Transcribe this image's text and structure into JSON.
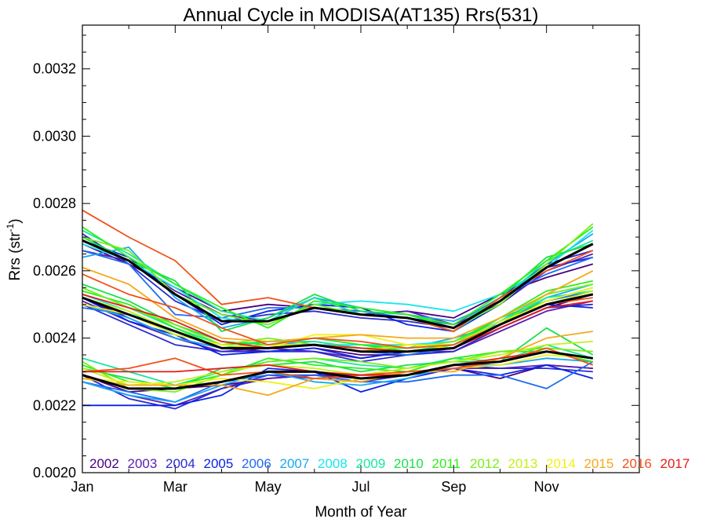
{
  "chart_data": {
    "type": "line",
    "title": "Annual Cycle in MODISA(AT135) Rrs(531)",
    "xlabel": "Month of Year",
    "ylabel_main": "Rrs (str",
    "ylabel_sup": "-1",
    "ylabel_end": ")",
    "xlim": [
      1,
      13
    ],
    "ylim": [
      0.002,
      0.00333
    ],
    "x_ticks": [
      {
        "x": 1,
        "label": "Jan"
      },
      {
        "x": 3,
        "label": "Mar"
      },
      {
        "x": 5,
        "label": "May"
      },
      {
        "x": 7,
        "label": "Jul"
      },
      {
        "x": 9,
        "label": "Sep"
      },
      {
        "x": 11,
        "label": "Nov"
      }
    ],
    "y_ticks": [
      {
        "y": 0.002,
        "label": "0.0020"
      },
      {
        "y": 0.0022,
        "label": "0.0022"
      },
      {
        "y": 0.0024,
        "label": "0.0024"
      },
      {
        "y": 0.0026,
        "label": "0.0026"
      },
      {
        "y": 0.0028,
        "label": "0.0028"
      },
      {
        "y": 0.003,
        "label": "0.0030"
      },
      {
        "y": 0.0032,
        "label": "0.0032"
      }
    ],
    "x": [
      1,
      2,
      3,
      4,
      5,
      6,
      7,
      8,
      9,
      10,
      11,
      12
    ],
    "legend_placement": "bottom",
    "legend": [
      {
        "year": "2002",
        "color": "#4b0082"
      },
      {
        "year": "2003",
        "color": "#5a1fb0"
      },
      {
        "year": "2004",
        "color": "#2b2bd0"
      },
      {
        "year": "2005",
        "color": "#0a22e6"
      },
      {
        "year": "2006",
        "color": "#1f6bf2"
      },
      {
        "year": "2007",
        "color": "#19a8f0"
      },
      {
        "year": "2008",
        "color": "#19e6ee"
      },
      {
        "year": "2009",
        "color": "#19e6a0"
      },
      {
        "year": "2010",
        "color": "#19e04c"
      },
      {
        "year": "2011",
        "color": "#2cf01a"
      },
      {
        "year": "2012",
        "color": "#78ee1a"
      },
      {
        "year": "2013",
        "color": "#c5f01a"
      },
      {
        "year": "2014",
        "color": "#f2f01a"
      },
      {
        "year": "2015",
        "color": "#f6a81a"
      },
      {
        "year": "2016",
        "color": "#f25019"
      },
      {
        "year": "2017",
        "color": "#e81a1a"
      }
    ],
    "series": [
      {
        "group": "high",
        "color": "#4b0082",
        "values": [
          0.00268,
          0.00262,
          0.00255,
          0.00248,
          0.0025,
          0.00249,
          0.00247,
          0.00248,
          0.00246,
          0.00253,
          0.00258,
          0.00262
        ]
      },
      {
        "group": "high",
        "color": "#5a1fb0",
        "values": [
          0.00266,
          0.00263,
          0.00254,
          0.00247,
          0.00245,
          0.00252,
          0.00247,
          0.00248,
          0.00244,
          0.0025,
          0.0026,
          0.00265
        ]
      },
      {
        "group": "high",
        "color": "#2b2bd0",
        "values": [
          0.00271,
          0.00262,
          0.00251,
          0.00245,
          0.00247,
          0.00248,
          0.00246,
          0.00245,
          0.00243,
          0.00252,
          0.00262,
          0.00266
        ]
      },
      {
        "group": "high",
        "color": "#0a22e6",
        "values": [
          0.00269,
          0.00264,
          0.00253,
          0.00244,
          0.00248,
          0.0025,
          0.00249,
          0.00244,
          0.00242,
          0.0025,
          0.00261,
          0.00264
        ]
      },
      {
        "group": "high",
        "color": "#1f6bf2",
        "values": [
          0.00266,
          0.00262,
          0.00247,
          0.00246,
          0.00249,
          0.00249,
          0.00248,
          0.00246,
          0.00244,
          0.00252,
          0.00259,
          0.00264
        ]
      },
      {
        "group": "high",
        "color": "#19a8f0",
        "values": [
          0.00264,
          0.00267,
          0.00252,
          0.00243,
          0.00246,
          0.00252,
          0.00249,
          0.00247,
          0.00245,
          0.00251,
          0.00262,
          0.00271
        ]
      },
      {
        "group": "high",
        "color": "#19e6ee",
        "values": [
          0.00268,
          0.00263,
          0.00255,
          0.00246,
          0.00244,
          0.0025,
          0.00251,
          0.0025,
          0.00248,
          0.00253,
          0.00261,
          0.00272
        ]
      },
      {
        "group": "high",
        "color": "#19e6a0",
        "values": [
          0.00272,
          0.00265,
          0.00256,
          0.00248,
          0.00245,
          0.00252,
          0.00247,
          0.00246,
          0.00242,
          0.00251,
          0.00263,
          0.00269
        ]
      },
      {
        "group": "high",
        "color": "#19e04c",
        "values": [
          0.0027,
          0.00263,
          0.00257,
          0.00242,
          0.00246,
          0.00253,
          0.00248,
          0.00247,
          0.00243,
          0.00252,
          0.00264,
          0.00268
        ]
      },
      {
        "group": "high",
        "color": "#2cf01a",
        "values": [
          0.00273,
          0.00264,
          0.00256,
          0.00249,
          0.00243,
          0.00251,
          0.00249,
          0.00247,
          0.00244,
          0.00253,
          0.00263,
          0.00273
        ]
      },
      {
        "group": "high",
        "color": "#78ee1a",
        "values": [
          0.0027,
          0.00266,
          0.00253,
          0.00247,
          0.00244,
          0.0025,
          0.00247,
          0.00246,
          0.00243,
          0.0025,
          0.00262,
          0.00274
        ]
      },
      {
        "group": "high",
        "color": "#f25019",
        "values": [
          0.00278,
          0.0027,
          0.00263,
          0.0025,
          0.00252,
          0.00249,
          0.00247,
          0.00246,
          0.00242,
          0.00252,
          0.0026,
          0.00266
        ]
      },
      {
        "group": "high",
        "color": "#000000",
        "width": 3,
        "values": [
          0.00269,
          0.00263,
          0.00253,
          0.00245,
          0.00245,
          0.00249,
          0.00247,
          0.00246,
          0.00243,
          0.00251,
          0.00261,
          0.00268
        ]
      },
      {
        "group": "mid",
        "color": "#4b0082",
        "values": [
          0.00252,
          0.00246,
          0.0024,
          0.00237,
          0.00236,
          0.00237,
          0.00235,
          0.00235,
          0.00237,
          0.00243,
          0.00249,
          0.00253
        ]
      },
      {
        "group": "mid",
        "color": "#5a1fb0",
        "values": [
          0.00251,
          0.00245,
          0.0024,
          0.00236,
          0.00237,
          0.00236,
          0.00234,
          0.00236,
          0.00236,
          0.00242,
          0.00248,
          0.00251
        ]
      },
      {
        "group": "mid",
        "color": "#2b2bd0",
        "values": [
          0.0025,
          0.00244,
          0.00238,
          0.00236,
          0.00236,
          0.00236,
          0.00233,
          0.00235,
          0.00236,
          0.00243,
          0.00249,
          0.0025
        ]
      },
      {
        "group": "mid",
        "color": "#0a22e6",
        "values": [
          0.00252,
          0.00245,
          0.00241,
          0.00235,
          0.00236,
          0.00237,
          0.00234,
          0.00236,
          0.00238,
          0.00244,
          0.0025,
          0.00249
        ]
      },
      {
        "group": "mid",
        "color": "#1f6bf2",
        "values": [
          0.00249,
          0.00247,
          0.00242,
          0.00237,
          0.00238,
          0.00238,
          0.00236,
          0.00235,
          0.00237,
          0.00245,
          0.00251,
          0.00254
        ]
      },
      {
        "group": "mid",
        "color": "#19a8f0",
        "values": [
          0.0025,
          0.00246,
          0.0024,
          0.00237,
          0.00238,
          0.00239,
          0.00237,
          0.00237,
          0.0024,
          0.00244,
          0.00252,
          0.00256
        ]
      },
      {
        "group": "mid",
        "color": "#19e6ee",
        "values": [
          0.00253,
          0.00248,
          0.00241,
          0.00238,
          0.00237,
          0.00238,
          0.00238,
          0.00238,
          0.00239,
          0.00245,
          0.00253,
          0.00256
        ]
      },
      {
        "group": "mid",
        "color": "#19e6a0",
        "values": [
          0.00255,
          0.00249,
          0.00243,
          0.00238,
          0.00239,
          0.00239,
          0.00237,
          0.00237,
          0.00238,
          0.00245,
          0.00252,
          0.00254
        ]
      },
      {
        "group": "mid",
        "color": "#19e04c",
        "values": [
          0.00256,
          0.00251,
          0.00244,
          0.00239,
          0.00238,
          0.0024,
          0.00238,
          0.00236,
          0.00238,
          0.00246,
          0.00251,
          0.00255
        ]
      },
      {
        "group": "mid",
        "color": "#2cf01a",
        "values": [
          0.00254,
          0.0025,
          0.00243,
          0.00237,
          0.00239,
          0.0024,
          0.00238,
          0.00237,
          0.00239,
          0.00246,
          0.00254,
          0.00257
        ]
      },
      {
        "group": "mid",
        "color": "#78ee1a",
        "values": [
          0.00255,
          0.00249,
          0.00244,
          0.00238,
          0.0024,
          0.00238,
          0.00237,
          0.00237,
          0.00239,
          0.00244,
          0.00253,
          0.00256
        ]
      },
      {
        "group": "mid",
        "color": "#c5f01a",
        "values": [
          0.00252,
          0.00248,
          0.00242,
          0.00237,
          0.00238,
          0.00238,
          0.00236,
          0.00238,
          0.00238,
          0.00245,
          0.0025,
          0.00254
        ]
      },
      {
        "group": "mid",
        "color": "#f2f01a",
        "values": [
          0.0025,
          0.00247,
          0.00241,
          0.00238,
          0.00237,
          0.00241,
          0.00241,
          0.00238,
          0.00237,
          0.00244,
          0.00251,
          0.00255
        ]
      },
      {
        "group": "mid",
        "color": "#f6a81a",
        "values": [
          0.00261,
          0.00256,
          0.00246,
          0.0024,
          0.00239,
          0.0024,
          0.00241,
          0.0024,
          0.0024,
          0.00246,
          0.00253,
          0.0026
        ]
      },
      {
        "group": "mid",
        "color": "#f25019",
        "values": [
          0.00259,
          0.00253,
          0.00249,
          0.00243,
          0.00238,
          0.0024,
          0.00239,
          0.00237,
          0.00238,
          0.00244,
          0.0025,
          0.00252
        ]
      },
      {
        "group": "mid",
        "color": "#e81a1a",
        "values": [
          0.00253,
          0.00249,
          0.00245,
          0.00239,
          0.00237,
          0.00238,
          0.00237,
          0.00236,
          0.00237,
          0.00243,
          0.00249,
          0.00251
        ]
      },
      {
        "group": "mid",
        "color": "#000000",
        "width": 3,
        "values": [
          0.00252,
          0.00247,
          0.00242,
          0.00237,
          0.00237,
          0.00238,
          0.00236,
          0.00236,
          0.00237,
          0.00244,
          0.0025,
          0.00253
        ]
      },
      {
        "group": "low",
        "color": "#4b0082",
        "values": [
          0.00229,
          0.00224,
          0.00225,
          0.00226,
          0.00228,
          0.00229,
          0.00228,
          0.00229,
          0.00231,
          0.00228,
          0.00232,
          0.00231
        ]
      },
      {
        "group": "low",
        "color": "#5a1fb0",
        "values": [
          0.00227,
          0.00223,
          0.0022,
          0.00225,
          0.00228,
          0.00229,
          0.00229,
          0.00229,
          0.00231,
          0.00231,
          0.00232,
          0.00231
        ]
      },
      {
        "group": "low",
        "color": "#2b2bd0",
        "values": [
          0.00229,
          0.00222,
          0.00219,
          0.00225,
          0.00229,
          0.00228,
          0.00227,
          0.00229,
          0.00232,
          0.00231,
          0.00231,
          0.0023
        ]
      },
      {
        "group": "low",
        "color": "#0a22e6",
        "values": [
          0.0022,
          0.0022,
          0.0022,
          0.00223,
          0.00231,
          0.0023,
          0.00224,
          0.00228,
          0.00231,
          0.00229,
          0.00232,
          0.00228
        ]
      },
      {
        "group": "low",
        "color": "#1f6bf2",
        "values": [
          0.00227,
          0.00224,
          0.00221,
          0.00227,
          0.00229,
          0.00229,
          0.00227,
          0.00227,
          0.00229,
          0.00229,
          0.00225,
          0.00233
        ]
      },
      {
        "group": "low",
        "color": "#19a8f0",
        "values": [
          0.00227,
          0.00223,
          0.00221,
          0.00226,
          0.0023,
          0.00227,
          0.00226,
          0.00228,
          0.00232,
          0.00232,
          0.00234,
          0.00233
        ]
      },
      {
        "group": "low",
        "color": "#19e6a0",
        "values": [
          0.00234,
          0.0023,
          0.00226,
          0.0023,
          0.00233,
          0.00234,
          0.00232,
          0.00231,
          0.00234,
          0.00233,
          0.00238,
          0.00234
        ]
      },
      {
        "group": "low",
        "color": "#19e04c",
        "values": [
          0.00231,
          0.00228,
          0.00225,
          0.00231,
          0.00232,
          0.00233,
          0.0023,
          0.00232,
          0.00233,
          0.00233,
          0.00243,
          0.00235
        ]
      },
      {
        "group": "low",
        "color": "#2cf01a",
        "values": [
          0.00232,
          0.00227,
          0.00226,
          0.00229,
          0.00234,
          0.00232,
          0.00231,
          0.0023,
          0.00234,
          0.00236,
          0.00236,
          0.00233
        ]
      },
      {
        "group": "low",
        "color": "#78ee1a",
        "values": [
          0.00233,
          0.00225,
          0.00224,
          0.00229,
          0.00233,
          0.00234,
          0.00233,
          0.00231,
          0.00233,
          0.00236,
          0.00237,
          0.00236
        ]
      },
      {
        "group": "low",
        "color": "#c5f01a",
        "values": [
          0.00231,
          0.00226,
          0.00227,
          0.0023,
          0.00232,
          0.00231,
          0.00229,
          0.00231,
          0.00233,
          0.00235,
          0.00238,
          0.00239
        ]
      },
      {
        "group": "low",
        "color": "#f2f01a",
        "values": [
          0.00228,
          0.00227,
          0.00226,
          0.00228,
          0.00227,
          0.00225,
          0.00228,
          0.0023,
          0.00231,
          0.00232,
          0.00235,
          0.00234
        ]
      },
      {
        "group": "low",
        "color": "#f6a81a",
        "values": [
          0.00228,
          0.00226,
          0.00226,
          0.00226,
          0.00223,
          0.00228,
          0.00227,
          0.0023,
          0.0023,
          0.00234,
          0.0024,
          0.00242
        ]
      },
      {
        "group": "low",
        "color": "#f25019",
        "values": [
          0.0023,
          0.00231,
          0.00234,
          0.00229,
          0.0023,
          0.00228,
          0.00229,
          0.0023,
          0.00231,
          0.00233,
          0.00237,
          0.00232
        ]
      },
      {
        "group": "low",
        "color": "#e81a1a",
        "values": [
          0.0023,
          0.0023,
          0.0023,
          0.00231,
          0.00232,
          0.0023,
          0.00229,
          0.00229,
          0.00232,
          0.00234,
          0.00236,
          0.00234
        ]
      },
      {
        "group": "low",
        "color": "#000000",
        "width": 3,
        "values": [
          0.00229,
          0.00225,
          0.00225,
          0.00227,
          0.0023,
          0.0023,
          0.00228,
          0.00229,
          0.00232,
          0.00233,
          0.00236,
          0.00234
        ]
      }
    ]
  }
}
